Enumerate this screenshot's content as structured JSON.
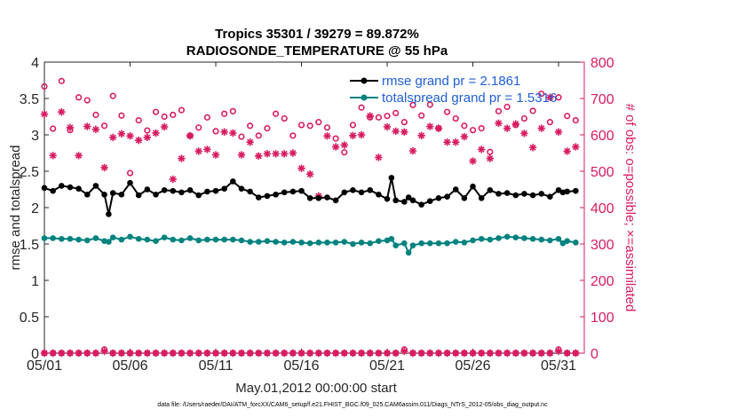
{
  "chart_data": {
    "type": "line",
    "title": "Tropics 35301 / 39279 = 89.872%",
    "subtitle": "RADIOSONDE_TEMPERATURE @ 55 hPa",
    "xlabel": "May.01,2012 00:00:00 start",
    "ylabel": "rmse and totalspread",
    "ylabel_right": "# of obs: o=possible; ×=assimilated",
    "footnote": "data file: /Users/raeder/DAI/ATM_forcXX/CAM6_setup/f.e21.FHIST_BGC.f09_025.CAM6assim.011/Diags_NTrS_2012-05/obs_diag_output.nc",
    "x_range": [
      1,
      32.5
    ],
    "ylim": [
      0,
      4
    ],
    "ylim_right": [
      0,
      800
    ],
    "x_ticks": [
      1,
      6,
      11,
      16,
      21,
      26,
      31
    ],
    "x_tick_labels": [
      "05/01",
      "05/06",
      "05/11",
      "05/16",
      "05/21",
      "05/26",
      "05/31"
    ],
    "y_ticks": [
      0,
      0.5,
      1,
      1.5,
      2,
      2.5,
      3,
      3.5,
      4
    ],
    "y_tick_labels": [
      "0",
      "0.5",
      "1",
      "1.5",
      "2",
      "2.5",
      "3",
      "3.5",
      "4"
    ],
    "y_ticks_right": [
      0,
      100,
      200,
      300,
      400,
      500,
      600,
      700,
      800
    ],
    "y_tick_labels_right": [
      "0",
      "100",
      "200",
      "300",
      "400",
      "500",
      "600",
      "700",
      "800"
    ],
    "legend": {
      "position": "top-right",
      "entries": [
        {
          "label": "rmse grand pr = 2.1861",
          "color": "#000000"
        },
        {
          "label": "totalspread grand pr = 1.5316",
          "color": "#00827f"
        }
      ]
    },
    "colors": {
      "rmse": "#000000",
      "totalspread": "#00827f",
      "obs": "#d81b60"
    },
    "series": [
      {
        "name": "rmse",
        "x": [
          1,
          1.5,
          2,
          2.5,
          3,
          3.5,
          4,
          4.5,
          4.75,
          5,
          5.5,
          6,
          6.5,
          7,
          7.5,
          8,
          8.5,
          9,
          9.5,
          10,
          10.5,
          11,
          11.5,
          12,
          12.5,
          13,
          13.5,
          14,
          14.5,
          15,
          15.5,
          16,
          16.5,
          17,
          17.5,
          18,
          18.5,
          19,
          19.5,
          20,
          20.5,
          21,
          21.25,
          21.5,
          22,
          22.25,
          22.5,
          23,
          23.5,
          24,
          24.5,
          25,
          25.5,
          26,
          26.5,
          27,
          27.5,
          28,
          28.5,
          29,
          29.5,
          30,
          30.5,
          31,
          31.25,
          31.5,
          32
        ],
        "values": [
          2.27,
          2.23,
          2.3,
          2.28,
          2.26,
          2.18,
          2.3,
          2.18,
          1.91,
          2.2,
          2.18,
          2.34,
          2.17,
          2.25,
          2.18,
          2.24,
          2.23,
          2.21,
          2.24,
          2.17,
          2.22,
          2.23,
          2.26,
          2.36,
          2.26,
          2.22,
          2.14,
          2.16,
          2.18,
          2.21,
          2.22,
          2.23,
          2.13,
          2.13,
          2.14,
          2.1,
          2.21,
          2.24,
          2.21,
          2.24,
          2.18,
          2.12,
          2.41,
          2.1,
          2.08,
          2.14,
          2.1,
          2.04,
          2.09,
          2.13,
          2.15,
          2.25,
          2.13,
          2.29,
          2.13,
          2.24,
          2.19,
          2.2,
          2.17,
          2.19,
          2.17,
          2.19,
          2.15,
          2.24,
          2.21,
          2.22,
          2.23
        ]
      },
      {
        "name": "totalspread",
        "x": [
          1,
          1.5,
          2,
          2.5,
          3,
          3.5,
          4,
          4.5,
          4.75,
          5,
          5.5,
          6,
          6.5,
          7,
          7.5,
          8,
          8.5,
          9,
          9.5,
          10,
          10.5,
          11,
          11.5,
          12,
          12.5,
          13,
          13.5,
          14,
          14.5,
          15,
          15.5,
          16,
          16.5,
          17,
          17.5,
          18,
          18.5,
          19,
          19.5,
          20,
          20.5,
          21,
          21.25,
          21.5,
          22,
          22.25,
          22.5,
          23,
          23.5,
          24,
          24.5,
          25,
          25.5,
          26,
          26.5,
          27,
          27.5,
          28,
          28.5,
          29,
          29.5,
          30,
          30.5,
          31,
          31.25,
          31.5,
          32
        ],
        "values": [
          1.58,
          1.58,
          1.57,
          1.57,
          1.56,
          1.55,
          1.58,
          1.54,
          1.53,
          1.59,
          1.56,
          1.6,
          1.57,
          1.56,
          1.54,
          1.59,
          1.56,
          1.55,
          1.58,
          1.55,
          1.56,
          1.56,
          1.56,
          1.56,
          1.55,
          1.53,
          1.53,
          1.54,
          1.53,
          1.52,
          1.53,
          1.52,
          1.51,
          1.52,
          1.52,
          1.52,
          1.53,
          1.5,
          1.52,
          1.51,
          1.54,
          1.55,
          1.57,
          1.48,
          1.51,
          1.38,
          1.48,
          1.51,
          1.51,
          1.51,
          1.51,
          1.53,
          1.52,
          1.55,
          1.57,
          1.56,
          1.58,
          1.6,
          1.59,
          1.58,
          1.57,
          1.56,
          1.55,
          1.57,
          1.51,
          1.54,
          1.52
        ]
      },
      {
        "name": "obs_possible",
        "axis": "right",
        "marker": "circle",
        "x": [
          1,
          1.5,
          2,
          2.5,
          3,
          3.5,
          4,
          4.5,
          5,
          5.5,
          6,
          6.5,
          7,
          7.5,
          8,
          8.5,
          9,
          9.5,
          10,
          10.5,
          11,
          11.5,
          12,
          12.5,
          13,
          13.5,
          14,
          14.5,
          15,
          15.5,
          16,
          16.5,
          17,
          17.5,
          18,
          18.5,
          19,
          19.5,
          20,
          20.5,
          21,
          21.5,
          22,
          22.5,
          23,
          23.5,
          24,
          24.5,
          25,
          25.5,
          26,
          26.5,
          27,
          27.5,
          28,
          28.5,
          29,
          29.5,
          30,
          30.5,
          31,
          31.5,
          32
        ],
        "values": [
          733,
          617,
          748,
          613,
          703,
          695,
          655,
          625,
          707,
          653,
          495,
          640,
          612,
          663,
          650,
          655,
          668,
          598,
          620,
          648,
          610,
          658,
          665,
          595,
          625,
          598,
          618,
          658,
          645,
          598,
          627,
          625,
          635,
          620,
          590,
          552,
          627,
          675,
          648,
          648,
          652,
          660,
          635,
          682,
          653,
          683,
          618,
          663,
          645,
          625,
          613,
          618,
          553,
          665,
          677,
          627,
          645,
          666,
          713,
          635,
          703,
          652,
          640
        ]
      },
      {
        "name": "obs_assimilated",
        "axis": "right",
        "marker": "asterisk",
        "x": [
          1,
          1.5,
          2,
          2.5,
          3,
          3.5,
          4,
          4.5,
          5,
          5.5,
          6,
          6.5,
          7,
          7.5,
          8,
          8.5,
          9,
          9.5,
          10,
          10.5,
          11,
          11.5,
          12,
          12.5,
          13,
          13.5,
          14,
          14.5,
          15,
          15.5,
          16,
          16.5,
          17,
          17.5,
          18,
          18.5,
          19,
          19.5,
          20,
          20.5,
          21,
          21.5,
          22,
          22.5,
          23,
          23.5,
          24,
          24.5,
          25,
          25.5,
          26,
          26.5,
          27,
          27.5,
          28,
          28.5,
          29,
          29.5,
          30,
          30.5,
          31,
          31.5,
          32
        ],
        "values": [
          657,
          543,
          663,
          620,
          543,
          623,
          615,
          510,
          593,
          603,
          597,
          585,
          593,
          605,
          622,
          478,
          535,
          597,
          555,
          560,
          545,
          608,
          605,
          545,
          580,
          542,
          548,
          548,
          548,
          550,
          508,
          492,
          432,
          597,
          567,
          572,
          598,
          600,
          652,
          538,
          622,
          610,
          608,
          556,
          598,
          623,
          618,
          580,
          580,
          595,
          528,
          560,
          535,
          632,
          618,
          630,
          604,
          565,
          618,
          703,
          608,
          555,
          567
        ]
      },
      {
        "name": "obs_possible_bottom",
        "axis": "right",
        "marker": "circle",
        "x": [
          1,
          1.5,
          2,
          2.5,
          3,
          3.5,
          4,
          4.5,
          5,
          5.5,
          6,
          6.5,
          7,
          7.5,
          8,
          8.5,
          9,
          9.5,
          10,
          10.5,
          11,
          11.5,
          12,
          12.5,
          13,
          13.5,
          14,
          14.5,
          15,
          15.5,
          16,
          16.5,
          17,
          17.5,
          18,
          18.5,
          19,
          19.5,
          20,
          20.5,
          21,
          21.5,
          22,
          22.5,
          23,
          23.5,
          24,
          24.5,
          25,
          25.5,
          26,
          26.5,
          27,
          27.5,
          28,
          28.5,
          29,
          29.5,
          30,
          30.5,
          31,
          31.5,
          32
        ],
        "values": [
          0,
          0,
          0,
          0,
          0,
          0,
          0,
          10,
          0,
          0,
          0,
          0,
          0,
          0,
          0,
          0,
          0,
          0,
          0,
          0,
          0,
          0,
          0,
          0,
          0,
          0,
          0,
          0,
          0,
          0,
          0,
          0,
          0,
          0,
          0,
          0,
          0,
          0,
          0,
          0,
          0,
          0,
          10,
          0,
          0,
          0,
          0,
          0,
          0,
          0,
          0,
          0,
          0,
          0,
          0,
          0,
          0,
          0,
          0,
          0,
          10,
          0,
          0
        ]
      },
      {
        "name": "obs_assimilated_bottom",
        "axis": "right",
        "marker": "asterisk",
        "x": [
          1,
          1.5,
          2,
          2.5,
          3,
          3.5,
          4,
          4.5,
          5,
          5.5,
          6,
          6.5,
          7,
          7.5,
          8,
          8.5,
          9,
          9.5,
          10,
          10.5,
          11,
          11.5,
          12,
          12.5,
          13,
          13.5,
          14,
          14.5,
          15,
          15.5,
          16,
          16.5,
          17,
          17.5,
          18,
          18.5,
          19,
          19.5,
          20,
          20.5,
          21,
          21.5,
          22,
          22.5,
          23,
          23.5,
          24,
          24.5,
          25,
          25.5,
          26,
          26.5,
          27,
          27.5,
          28,
          28.5,
          29,
          29.5,
          30,
          30.5,
          31,
          31.5,
          32
        ],
        "values": [
          0,
          0,
          0,
          0,
          0,
          0,
          0,
          5,
          0,
          0,
          0,
          0,
          0,
          0,
          0,
          0,
          0,
          0,
          0,
          0,
          0,
          0,
          0,
          0,
          0,
          0,
          0,
          0,
          0,
          0,
          0,
          0,
          0,
          0,
          0,
          0,
          0,
          0,
          0,
          0,
          0,
          0,
          5,
          0,
          0,
          0,
          0,
          0,
          0,
          0,
          0,
          0,
          0,
          0,
          0,
          0,
          0,
          0,
          0,
          0,
          5,
          0,
          0
        ]
      }
    ]
  }
}
